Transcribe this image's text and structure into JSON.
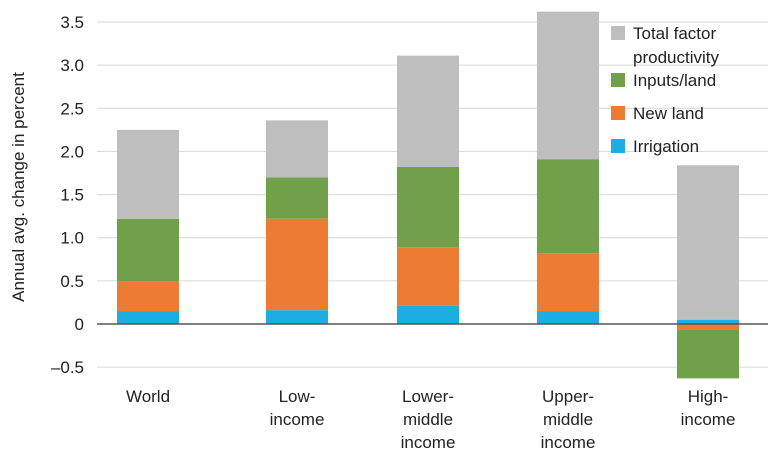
{
  "chart_data": {
    "type": "bar",
    "stacked": true,
    "categories": [
      [
        "World"
      ],
      [
        "Low-",
        "income"
      ],
      [
        "Lower-",
        "middle",
        "income"
      ],
      [
        "Upper-",
        "middle",
        "income"
      ],
      [
        "High-",
        "income"
      ]
    ],
    "series": [
      {
        "name": "Irrigation",
        "color": "#1cade4",
        "values": [
          0.15,
          0.16,
          0.21,
          0.15,
          0.05
        ]
      },
      {
        "name": "New land",
        "color": "#ee7b34",
        "values": [
          0.34,
          1.06,
          0.68,
          0.67,
          -0.06
        ]
      },
      {
        "name": "Inputs/land",
        "color": "#70a04a",
        "values": [
          0.73,
          0.48,
          0.93,
          1.09,
          -0.57
        ]
      },
      {
        "name": "Total factor productivity",
        "color": "#bebebf",
        "values": [
          1.03,
          0.66,
          1.29,
          1.71,
          1.79
        ]
      }
    ],
    "legend_labels": [
      {
        "key": "Total factor productivity",
        "lines": [
          "Total factor",
          "productivity"
        ],
        "color": "#bebebf"
      },
      {
        "key": "Inputs/land",
        "lines": [
          "Inputs/land"
        ],
        "color": "#70a04a"
      },
      {
        "key": "New land",
        "lines": [
          "New land"
        ],
        "color": "#ee7b34"
      },
      {
        "key": "Irrigation",
        "lines": [
          "Irrigation"
        ],
        "color": "#1cade4"
      }
    ],
    "ylabel": "Annual avg. change in percent",
    "xlabel": "",
    "title": "",
    "ylim": [
      -0.6,
      3.6
    ],
    "yticks": [
      -0.5,
      0,
      0.5,
      1.0,
      1.5,
      2.0,
      2.5,
      3.0,
      3.5
    ],
    "ytick_labels": [
      "–0.5",
      "0",
      "0.5",
      "1.0",
      "1.5",
      "2.0",
      "2.5",
      "3.0",
      "3.5"
    ],
    "grid": true,
    "legend_position": "top-right"
  }
}
